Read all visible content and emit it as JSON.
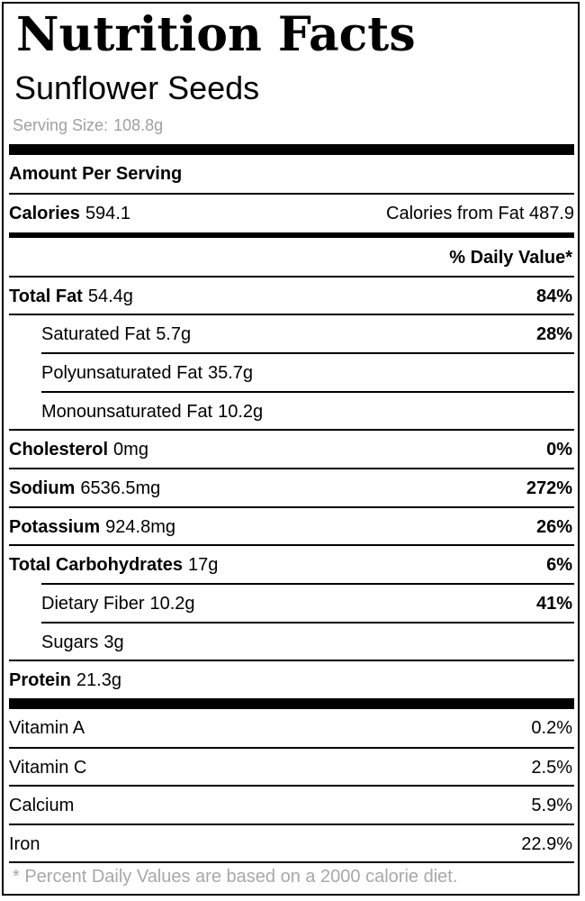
{
  "label": {
    "title": "Nutrition Facts",
    "product": "Sunflower Seeds",
    "serving_label": "Serving Size:",
    "serving_value": "108.8g",
    "amount_per_serving": "Amount Per Serving",
    "calories_label": "Calories",
    "calories_value": "594.1",
    "calories_from_fat": "Calories from Fat 487.9",
    "daily_value_header": "% Daily Value*",
    "nutrients": [
      {
        "name": "Total Fat",
        "amount": "54.4g",
        "dv": "84%"
      },
      {
        "name": "Saturated Fat",
        "amount": "5.7g",
        "dv": "28%"
      },
      {
        "name": "Polyunsaturated Fat",
        "amount": "35.7g",
        "dv": ""
      },
      {
        "name": "Monounsaturated Fat",
        "amount": "10.2g",
        "dv": ""
      },
      {
        "name": "Cholesterol",
        "amount": "0mg",
        "dv": "0%"
      },
      {
        "name": "Sodium",
        "amount": "6536.5mg",
        "dv": "272%"
      },
      {
        "name": "Potassium",
        "amount": "924.8mg",
        "dv": "26%"
      },
      {
        "name": "Total Carbohydrates",
        "amount": "17g",
        "dv": "6%"
      },
      {
        "name": "Dietary Fiber",
        "amount": "10.2g",
        "dv": "41%"
      },
      {
        "name": "Sugars",
        "amount": "3g",
        "dv": ""
      },
      {
        "name": "Protein",
        "amount": "21.3g",
        "dv": ""
      }
    ],
    "vitamins": [
      {
        "name": "Vitamin A",
        "value": "0.2%"
      },
      {
        "name": "Vitamin C",
        "value": "2.5%"
      },
      {
        "name": "Calcium",
        "value": "5.9%"
      },
      {
        "name": "Iron",
        "value": "22.9%"
      }
    ],
    "footnote": "* Percent Daily Values are based on a 2000 calorie diet."
  }
}
